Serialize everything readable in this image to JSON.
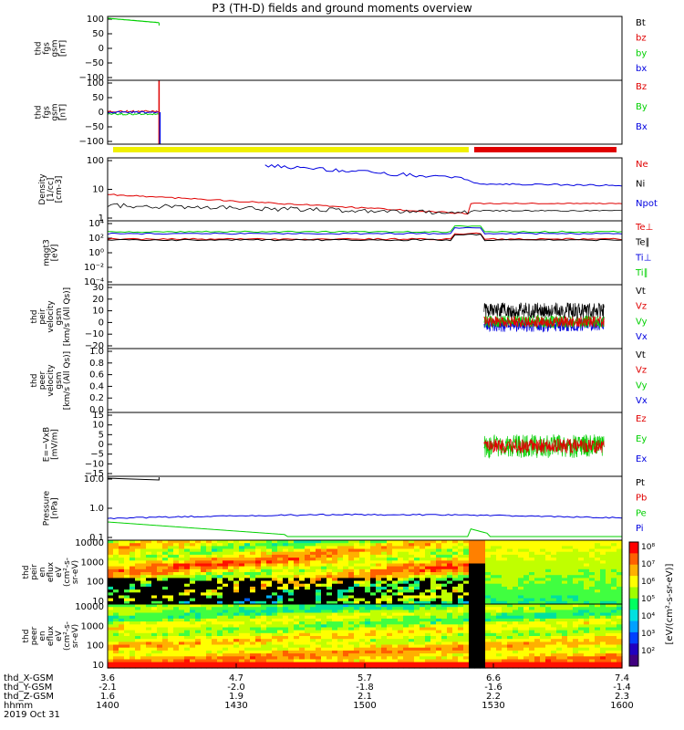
{
  "title": "P3 (TH-D) fields and ground moments overview",
  "colors": {
    "black": "#000000",
    "red": "#e00000",
    "green": "#00d000",
    "blue": "#0000e0",
    "yellow": "#f0f000",
    "bar_red": "#e00000"
  },
  "chart_data": {
    "type": "line",
    "time_ticks": [
      "1400",
      "1430",
      "1500",
      "1530",
      "1600"
    ],
    "ephemeris": {
      "labels": [
        "thd_X-GSM",
        "thd_Y-GSM",
        "thd_Z-GSM",
        "hhmm",
        "2019 Oct 31"
      ],
      "x": [
        "3.6",
        "4.7",
        "5.7",
        "6.6",
        "7.4"
      ],
      "y": [
        "-2.1",
        "-2.0",
        "-1.8",
        "-1.6",
        "-1.4"
      ],
      "z": [
        "1.6",
        "1.9",
        "2.1",
        "2.2",
        "2.3"
      ]
    },
    "panels": [
      {
        "ylabel": "thd\nfgs\ngsm\n[nT]",
        "ticks": [
          "100",
          "50",
          "0",
          "−50",
          "−100"
        ],
        "ymin": -100,
        "ymax": 100,
        "legend": [
          {
            "name": "Bt",
            "color": "black"
          },
          {
            "name": "bz",
            "color": "red"
          },
          {
            "name": "by",
            "color": "green"
          },
          {
            "name": "bx",
            "color": "blue"
          }
        ]
      },
      {
        "ylabel": "thd\nfgs\ngsm\n[nT]",
        "ticks": [
          "100",
          "50",
          "0",
          "−50",
          "−100"
        ],
        "ymin": -125,
        "ymax": 125,
        "legend": [
          {
            "name": "Bz",
            "color": "red"
          },
          {
            "name": "By",
            "color": "green"
          },
          {
            "name": "Bx",
            "color": "blue"
          }
        ]
      },
      {
        "ylabel": "Density\n[1/cc]\n[cm-3]",
        "ticks": [
          "100",
          "10",
          "1"
        ],
        "log": true,
        "legend": [
          {
            "name": "Ne",
            "color": "red"
          },
          {
            "name": "Ni",
            "color": "black"
          },
          {
            "name": "Npot",
            "color": "blue"
          }
        ]
      },
      {
        "ylabel": "mqgt3\n[eV]",
        "ticks": [
          "10⁴",
          "10²",
          "10⁰",
          "10⁻²",
          "10⁻⁴"
        ],
        "log": true,
        "legend": [
          {
            "name": "Te⊥",
            "color": "red"
          },
          {
            "name": "Te∥",
            "color": "black"
          },
          {
            "name": "Ti⊥",
            "color": "blue"
          },
          {
            "name": "Ti∥",
            "color": "green"
          }
        ]
      },
      {
        "ylabel": "thd\npeir\nvelocity\ngsm\n[km/s (All Qs)]",
        "ticks": [
          "30",
          "20",
          "10",
          "0",
          "−10",
          "−20"
        ],
        "ymin": -20,
        "ymax": 30,
        "legend": [
          {
            "name": "Vt",
            "color": "black"
          },
          {
            "name": "Vz",
            "color": "red"
          },
          {
            "name": "Vy",
            "color": "green"
          },
          {
            "name": "Vx",
            "color": "blue"
          }
        ]
      },
      {
        "ylabel": "thd\npeer\nvelocity\ngsm\n[km/s (All Qs)]",
        "ticks": [
          "1.0",
          "0.8",
          "0.6",
          "0.4",
          "0.2",
          "0.0"
        ],
        "ymin": 0,
        "ymax": 1,
        "legend": [
          {
            "name": "Vt",
            "color": "black"
          },
          {
            "name": "Vz",
            "color": "red"
          },
          {
            "name": "Vy",
            "color": "green"
          },
          {
            "name": "Vx",
            "color": "blue"
          }
        ]
      },
      {
        "ylabel": "E=−VxB\n[mV/m]",
        "ticks": [
          "15",
          "10",
          "5",
          "0",
          "−5",
          "−10",
          "−15"
        ],
        "ymin": -15,
        "ymax": 15,
        "legend": [
          {
            "name": "Ez",
            "color": "red"
          },
          {
            "name": "Ey",
            "color": "green"
          },
          {
            "name": "Ex",
            "color": "blue"
          }
        ]
      },
      {
        "ylabel": "Pressure\n[nPa]",
        "ticks": [
          "10.0",
          "1.0",
          "0.1"
        ],
        "log": true,
        "legend": [
          {
            "name": "Pt",
            "color": "black"
          },
          {
            "name": "Pb",
            "color": "red"
          },
          {
            "name": "Pe",
            "color": "green"
          },
          {
            "name": "Pi",
            "color": "blue"
          }
        ]
      },
      {
        "ylabel": "thd\npeir\nen\neflux\neV\n(cm²-s-\nsr-eV)",
        "ticks": [
          "10000",
          "1000",
          "100",
          "10"
        ],
        "spectrogram": true
      },
      {
        "ylabel": "thd\npeer\nen\neflux\neV\n(cm²-s-\nsr-eV)",
        "ticks": [
          "10000",
          "1000",
          "100",
          "10"
        ],
        "spectrogram": true
      }
    ],
    "colorbar": {
      "ticks": [
        "10⁸",
        "10⁷",
        "10⁶",
        "10⁵",
        "10⁴",
        "10³",
        "10²"
      ],
      "label": "[eV/(cm²-s-sr-eV)]"
    }
  }
}
